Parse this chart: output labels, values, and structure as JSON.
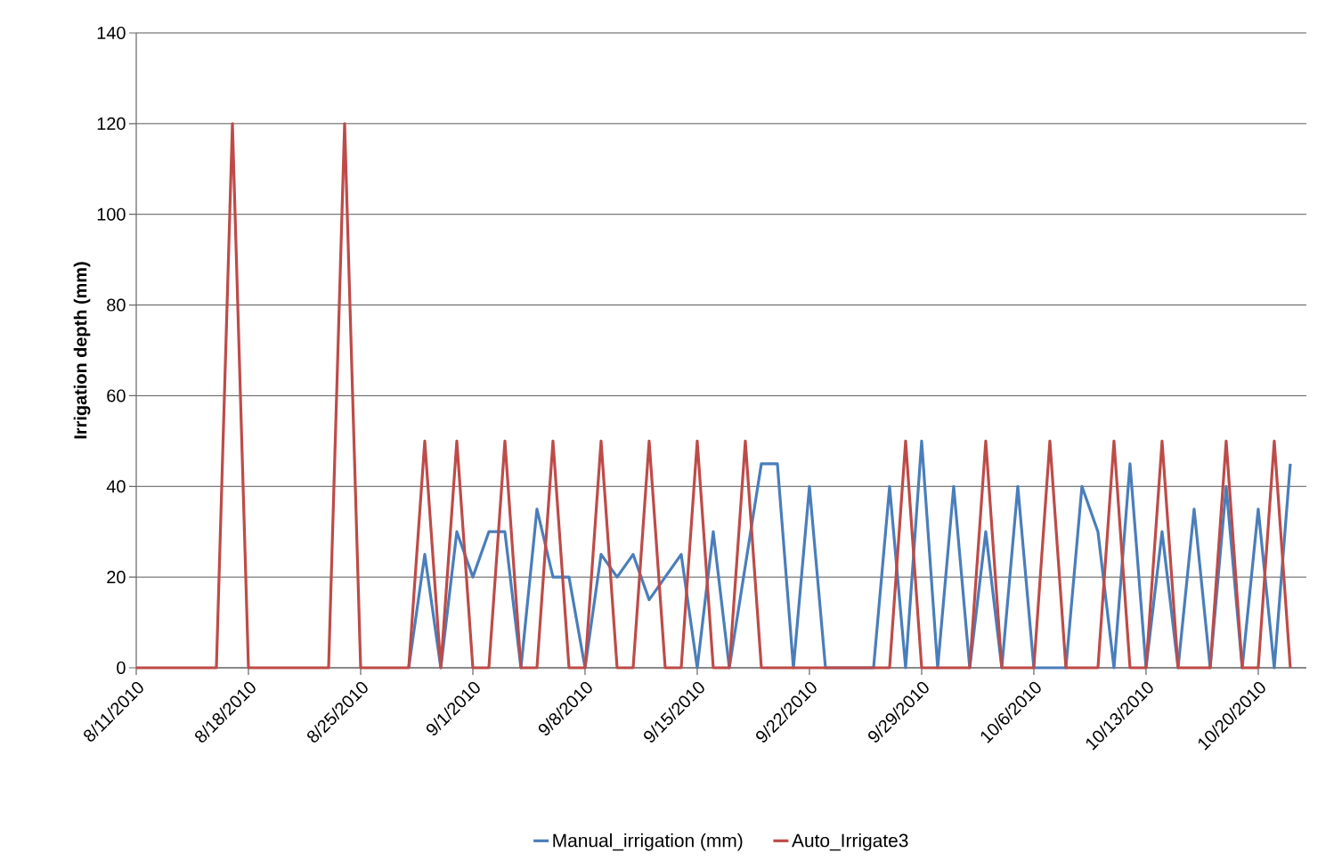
{
  "chart_data": {
    "type": "line",
    "ylabel": "Irrigation depth (mm)",
    "xlim": [
      "2010-08-11",
      "2010-10-23"
    ],
    "ylim": [
      0,
      140
    ],
    "xticks": [
      {
        "value": "2010-08-11",
        "label": "8/11/2010"
      },
      {
        "value": "2010-08-18",
        "label": "8/18/2010"
      },
      {
        "value": "2010-08-25",
        "label": "8/25/2010"
      },
      {
        "value": "2010-09-01",
        "label": "9/1/2010"
      },
      {
        "value": "2010-09-08",
        "label": "9/8/2010"
      },
      {
        "value": "2010-09-15",
        "label": "9/15/2010"
      },
      {
        "value": "2010-09-22",
        "label": "9/22/2010"
      },
      {
        "value": "2010-09-29",
        "label": "9/29/2010"
      },
      {
        "value": "2010-10-06",
        "label": "10/6/2010"
      },
      {
        "value": "2010-10-13",
        "label": "10/13/2010"
      },
      {
        "value": "2010-10-20",
        "label": "10/20/2010"
      }
    ],
    "yticks": [
      0,
      20,
      40,
      60,
      80,
      100,
      120,
      140
    ],
    "grid": "y",
    "legend": "bottom",
    "marker": "none",
    "line_style": "solid",
    "series": [
      {
        "name": "Manual_irrigation (mm)",
        "color": "#4a7ebb",
        "x": [
          "2010-08-28",
          "2010-08-29",
          "2010-08-30",
          "2010-08-31",
          "2010-09-01",
          "2010-09-02",
          "2010-09-03",
          "2010-09-04",
          "2010-09-05",
          "2010-09-06",
          "2010-09-07",
          "2010-09-08",
          "2010-09-09",
          "2010-09-10",
          "2010-09-11",
          "2010-09-12",
          "2010-09-14",
          "2010-09-15",
          "2010-09-16",
          "2010-09-17",
          "2010-09-19",
          "2010-09-20",
          "2010-09-21",
          "2010-09-22",
          "2010-09-23",
          "2010-09-26",
          "2010-09-27",
          "2010-09-28",
          "2010-09-29",
          "2010-09-30",
          "2010-10-01",
          "2010-10-02",
          "2010-10-03",
          "2010-10-04",
          "2010-10-05",
          "2010-10-06",
          "2010-10-08",
          "2010-10-09",
          "2010-10-10",
          "2010-10-11",
          "2010-10-12",
          "2010-10-13",
          "2010-10-14",
          "2010-10-15",
          "2010-10-16",
          "2010-10-17",
          "2010-10-18",
          "2010-10-19",
          "2010-10-20",
          "2010-10-21",
          "2010-10-22"
        ],
        "values": [
          0,
          25,
          0,
          30,
          20,
          30,
          30,
          0,
          35,
          20,
          20,
          0,
          25,
          20,
          25,
          15,
          25,
          0,
          30,
          0,
          45,
          45,
          0,
          40,
          0,
          0,
          40,
          0,
          50,
          0,
          40,
          0,
          30,
          0,
          40,
          0,
          0,
          40,
          30,
          0,
          45,
          0,
          30,
          0,
          35,
          0,
          40,
          0,
          35,
          0,
          45
        ]
      },
      {
        "name": "Auto_Irrigate3",
        "color": "#be4b48",
        "x": [
          "2010-08-11",
          "2010-08-12",
          "2010-08-13",
          "2010-08-14",
          "2010-08-15",
          "2010-08-16",
          "2010-08-17",
          "2010-08-18",
          "2010-08-19",
          "2010-08-20",
          "2010-08-21",
          "2010-08-22",
          "2010-08-23",
          "2010-08-24",
          "2010-08-25",
          "2010-08-26",
          "2010-08-27",
          "2010-08-28",
          "2010-08-29",
          "2010-08-30",
          "2010-08-31",
          "2010-09-01",
          "2010-09-02",
          "2010-09-03",
          "2010-09-04",
          "2010-09-05",
          "2010-09-06",
          "2010-09-07",
          "2010-09-08",
          "2010-09-09",
          "2010-09-10",
          "2010-09-11",
          "2010-09-12",
          "2010-09-13",
          "2010-09-14",
          "2010-09-15",
          "2010-09-16",
          "2010-09-17",
          "2010-09-18",
          "2010-09-19",
          "2010-09-20",
          "2010-09-21",
          "2010-09-22",
          "2010-09-23",
          "2010-09-24",
          "2010-09-25",
          "2010-09-26",
          "2010-09-27",
          "2010-09-28",
          "2010-09-29",
          "2010-09-30",
          "2010-10-01",
          "2010-10-02",
          "2010-10-03",
          "2010-10-04",
          "2010-10-05",
          "2010-10-06",
          "2010-10-07",
          "2010-10-08",
          "2010-10-09",
          "2010-10-10",
          "2010-10-11",
          "2010-10-12",
          "2010-10-13",
          "2010-10-14",
          "2010-10-15",
          "2010-10-16",
          "2010-10-17",
          "2010-10-18",
          "2010-10-19",
          "2010-10-20",
          "2010-10-21",
          "2010-10-22"
        ],
        "values": [
          0,
          0,
          0,
          0,
          0,
          0,
          120,
          0,
          0,
          0,
          0,
          0,
          0,
          120,
          0,
          0,
          0,
          0,
          50,
          0,
          50,
          0,
          0,
          50,
          0,
          0,
          50,
          0,
          0,
          50,
          0,
          0,
          50,
          0,
          0,
          50,
          0,
          0,
          50,
          0,
          0,
          0,
          0,
          0,
          0,
          0,
          0,
          0,
          50,
          0,
          0,
          0,
          0,
          50,
          0,
          0,
          0,
          50,
          0,
          0,
          0,
          50,
          0,
          0,
          50,
          0,
          0,
          0,
          50,
          0,
          0,
          50,
          0
        ]
      }
    ]
  }
}
